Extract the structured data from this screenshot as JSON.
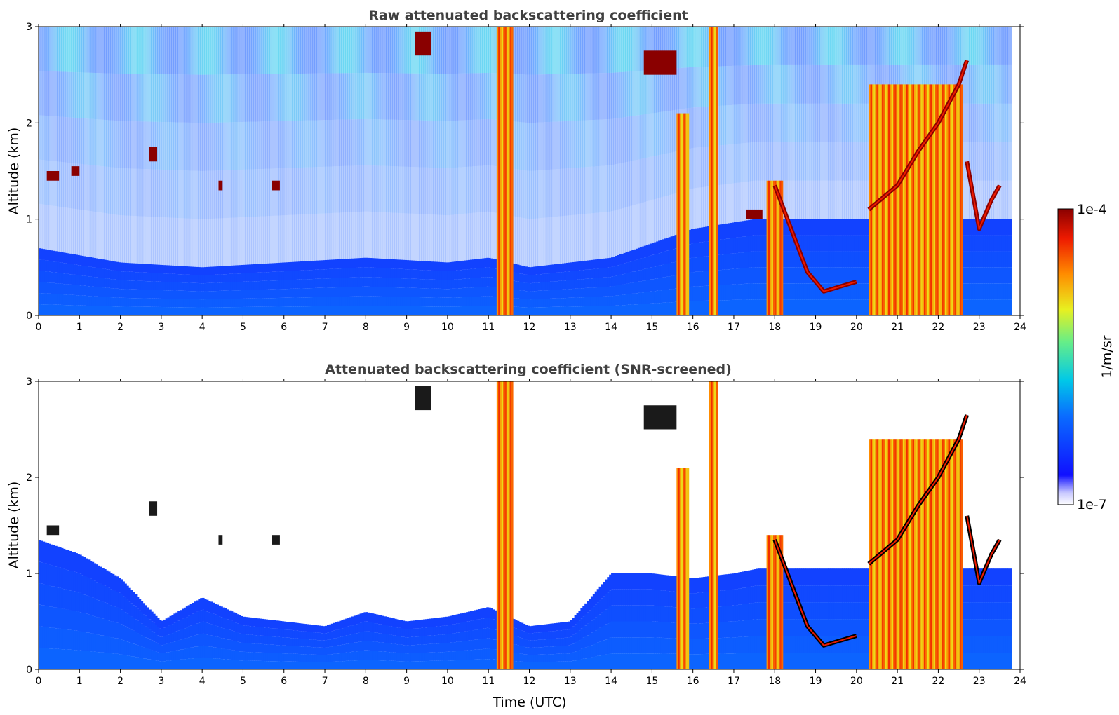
{
  "chart_data": [
    {
      "type": "heatmap",
      "title": "Raw attenuated backscattering coefficient",
      "xlabel": "",
      "ylabel": "Altitude (km)",
      "xlim": [
        0,
        24
      ],
      "ylim": [
        0,
        3
      ],
      "xticks": [
        "0",
        "1",
        "2",
        "3",
        "4",
        "5",
        "6",
        "7",
        "8",
        "9",
        "10",
        "11",
        "12",
        "13",
        "14",
        "15",
        "16",
        "17",
        "18",
        "19",
        "20",
        "21",
        "22",
        "23",
        "24"
      ],
      "yticks": [
        "0",
        "1",
        "2",
        "3"
      ],
      "screened": false,
      "colorscale": "log",
      "vmin": 1e-07,
      "vmax": 0.0001,
      "features": [
        {
          "kind": "boundary_layer_top",
          "x": [
            0,
            2,
            4,
            6,
            8,
            10,
            11,
            12,
            14,
            16,
            17.5
          ],
          "y": [
            0.7,
            0.55,
            0.5,
            0.55,
            0.6,
            0.55,
            0.6,
            0.5,
            0.6,
            0.9,
            1.0
          ]
        },
        {
          "kind": "cloud_layer",
          "x": [
            18.0,
            18.4,
            18.8,
            19.2,
            19.6,
            20.0
          ],
          "y": [
            1.35,
            0.9,
            0.45,
            0.25,
            0.3,
            0.35
          ]
        },
        {
          "kind": "cloud_layer",
          "x": [
            20.3,
            21.0,
            21.5,
            22.0,
            22.5,
            22.7
          ],
          "y": [
            1.1,
            1.35,
            1.7,
            2.0,
            2.4,
            2.65
          ]
        },
        {
          "kind": "cloud_layer",
          "x": [
            22.7,
            23.0,
            23.3,
            23.5
          ],
          "y": [
            1.6,
            0.9,
            1.2,
            1.35
          ]
        },
        {
          "kind": "precip_column",
          "x": [
            11.2,
            11.6
          ],
          "y": [
            0,
            3
          ]
        },
        {
          "kind": "precip_column",
          "x": [
            15.6,
            15.9
          ],
          "y": [
            0,
            2.1
          ]
        },
        {
          "kind": "precip_column",
          "x": [
            16.4,
            16.6
          ],
          "y": [
            0,
            3
          ]
        },
        {
          "kind": "precip_column",
          "x": [
            17.8,
            18.2
          ],
          "y": [
            0,
            1.4
          ]
        },
        {
          "kind": "precip_column",
          "x": [
            20.3,
            22.6
          ],
          "y": [
            0,
            2.4
          ]
        },
        {
          "kind": "elevated_cloud",
          "x": [
            0.2,
            0.5
          ],
          "y": [
            1.4,
            1.5
          ]
        },
        {
          "kind": "elevated_cloud",
          "x": [
            0.8,
            1.0
          ],
          "y": [
            1.45,
            1.55
          ]
        },
        {
          "kind": "elevated_cloud",
          "x": [
            2.7,
            2.9
          ],
          "y": [
            1.6,
            1.75
          ]
        },
        {
          "kind": "elevated_cloud",
          "x": [
            4.4,
            4.5
          ],
          "y": [
            1.3,
            1.4
          ]
        },
        {
          "kind": "elevated_cloud",
          "x": [
            5.7,
            5.9
          ],
          "y": [
            1.3,
            1.4
          ]
        },
        {
          "kind": "elevated_cloud",
          "x": [
            9.2,
            9.6
          ],
          "y": [
            2.7,
            2.95
          ]
        },
        {
          "kind": "elevated_cloud",
          "x": [
            14.8,
            15.6
          ],
          "y": [
            2.5,
            2.75
          ]
        },
        {
          "kind": "elevated_cloud",
          "x": [
            17.3,
            17.7
          ],
          "y": [
            1.0,
            1.1
          ]
        }
      ]
    },
    {
      "type": "heatmap",
      "title": "Attenuated backscattering coefficient (SNR-screened)",
      "xlabel": "Time (UTC)",
      "ylabel": "Altitude (km)",
      "xlim": [
        0,
        24
      ],
      "ylim": [
        0,
        3
      ],
      "xticks": [
        "0",
        "1",
        "2",
        "3",
        "4",
        "5",
        "6",
        "7",
        "8",
        "9",
        "10",
        "11",
        "12",
        "13",
        "14",
        "15",
        "16",
        "17",
        "18",
        "19",
        "20",
        "21",
        "22",
        "23",
        "24"
      ],
      "yticks": [
        "0",
        "1",
        "2",
        "3"
      ],
      "screened": true,
      "colorscale": "log",
      "vmin": 1e-07,
      "vmax": 0.0001,
      "features": [
        {
          "kind": "boundary_layer_top",
          "x": [
            0,
            1,
            2,
            3,
            4,
            5,
            6,
            7,
            8,
            9,
            10,
            11,
            12,
            13,
            14,
            15,
            16,
            17,
            17.6
          ],
          "y": [
            1.35,
            1.2,
            0.95,
            0.5,
            0.75,
            0.55,
            0.5,
            0.45,
            0.6,
            0.5,
            0.55,
            0.65,
            0.45,
            0.5,
            1.0,
            1.0,
            0.95,
            1.0,
            1.05
          ]
        },
        {
          "kind": "cloud_layer",
          "x": [
            18.0,
            18.4,
            18.8,
            19.2,
            19.6,
            20.0
          ],
          "y": [
            1.35,
            0.9,
            0.45,
            0.25,
            0.3,
            0.35
          ]
        },
        {
          "kind": "cloud_layer",
          "x": [
            20.3,
            21.0,
            21.5,
            22.0,
            22.5,
            22.7
          ],
          "y": [
            1.1,
            1.35,
            1.7,
            2.0,
            2.4,
            2.65
          ]
        },
        {
          "kind": "cloud_layer",
          "x": [
            22.7,
            23.0,
            23.3,
            23.5
          ],
          "y": [
            1.6,
            0.9,
            1.2,
            1.35
          ]
        },
        {
          "kind": "precip_column",
          "x": [
            11.2,
            11.6
          ],
          "y": [
            0,
            3
          ]
        },
        {
          "kind": "precip_column",
          "x": [
            15.6,
            15.9
          ],
          "y": [
            0,
            2.1
          ]
        },
        {
          "kind": "precip_column",
          "x": [
            16.4,
            16.6
          ],
          "y": [
            0,
            3
          ]
        },
        {
          "kind": "precip_column",
          "x": [
            17.8,
            18.2
          ],
          "y": [
            0,
            1.4
          ]
        },
        {
          "kind": "precip_column",
          "x": [
            20.3,
            22.6
          ],
          "y": [
            0,
            2.4
          ]
        },
        {
          "kind": "elevated_cloud",
          "x": [
            0.2,
            0.5
          ],
          "y": [
            1.4,
            1.5
          ]
        },
        {
          "kind": "elevated_cloud",
          "x": [
            2.7,
            2.9
          ],
          "y": [
            1.6,
            1.75
          ]
        },
        {
          "kind": "elevated_cloud",
          "x": [
            4.4,
            4.5
          ],
          "y": [
            1.3,
            1.4
          ]
        },
        {
          "kind": "elevated_cloud",
          "x": [
            5.7,
            5.9
          ],
          "y": [
            1.3,
            1.4
          ]
        },
        {
          "kind": "elevated_cloud",
          "x": [
            9.2,
            9.6
          ],
          "y": [
            2.7,
            2.95
          ]
        },
        {
          "kind": "elevated_cloud",
          "x": [
            14.8,
            15.6
          ],
          "y": [
            2.5,
            2.75
          ]
        }
      ]
    }
  ],
  "colorbar": {
    "label": "1/m/sr",
    "min_label": "1e-7",
    "max_label": "1e-4",
    "colormap": "jet"
  }
}
